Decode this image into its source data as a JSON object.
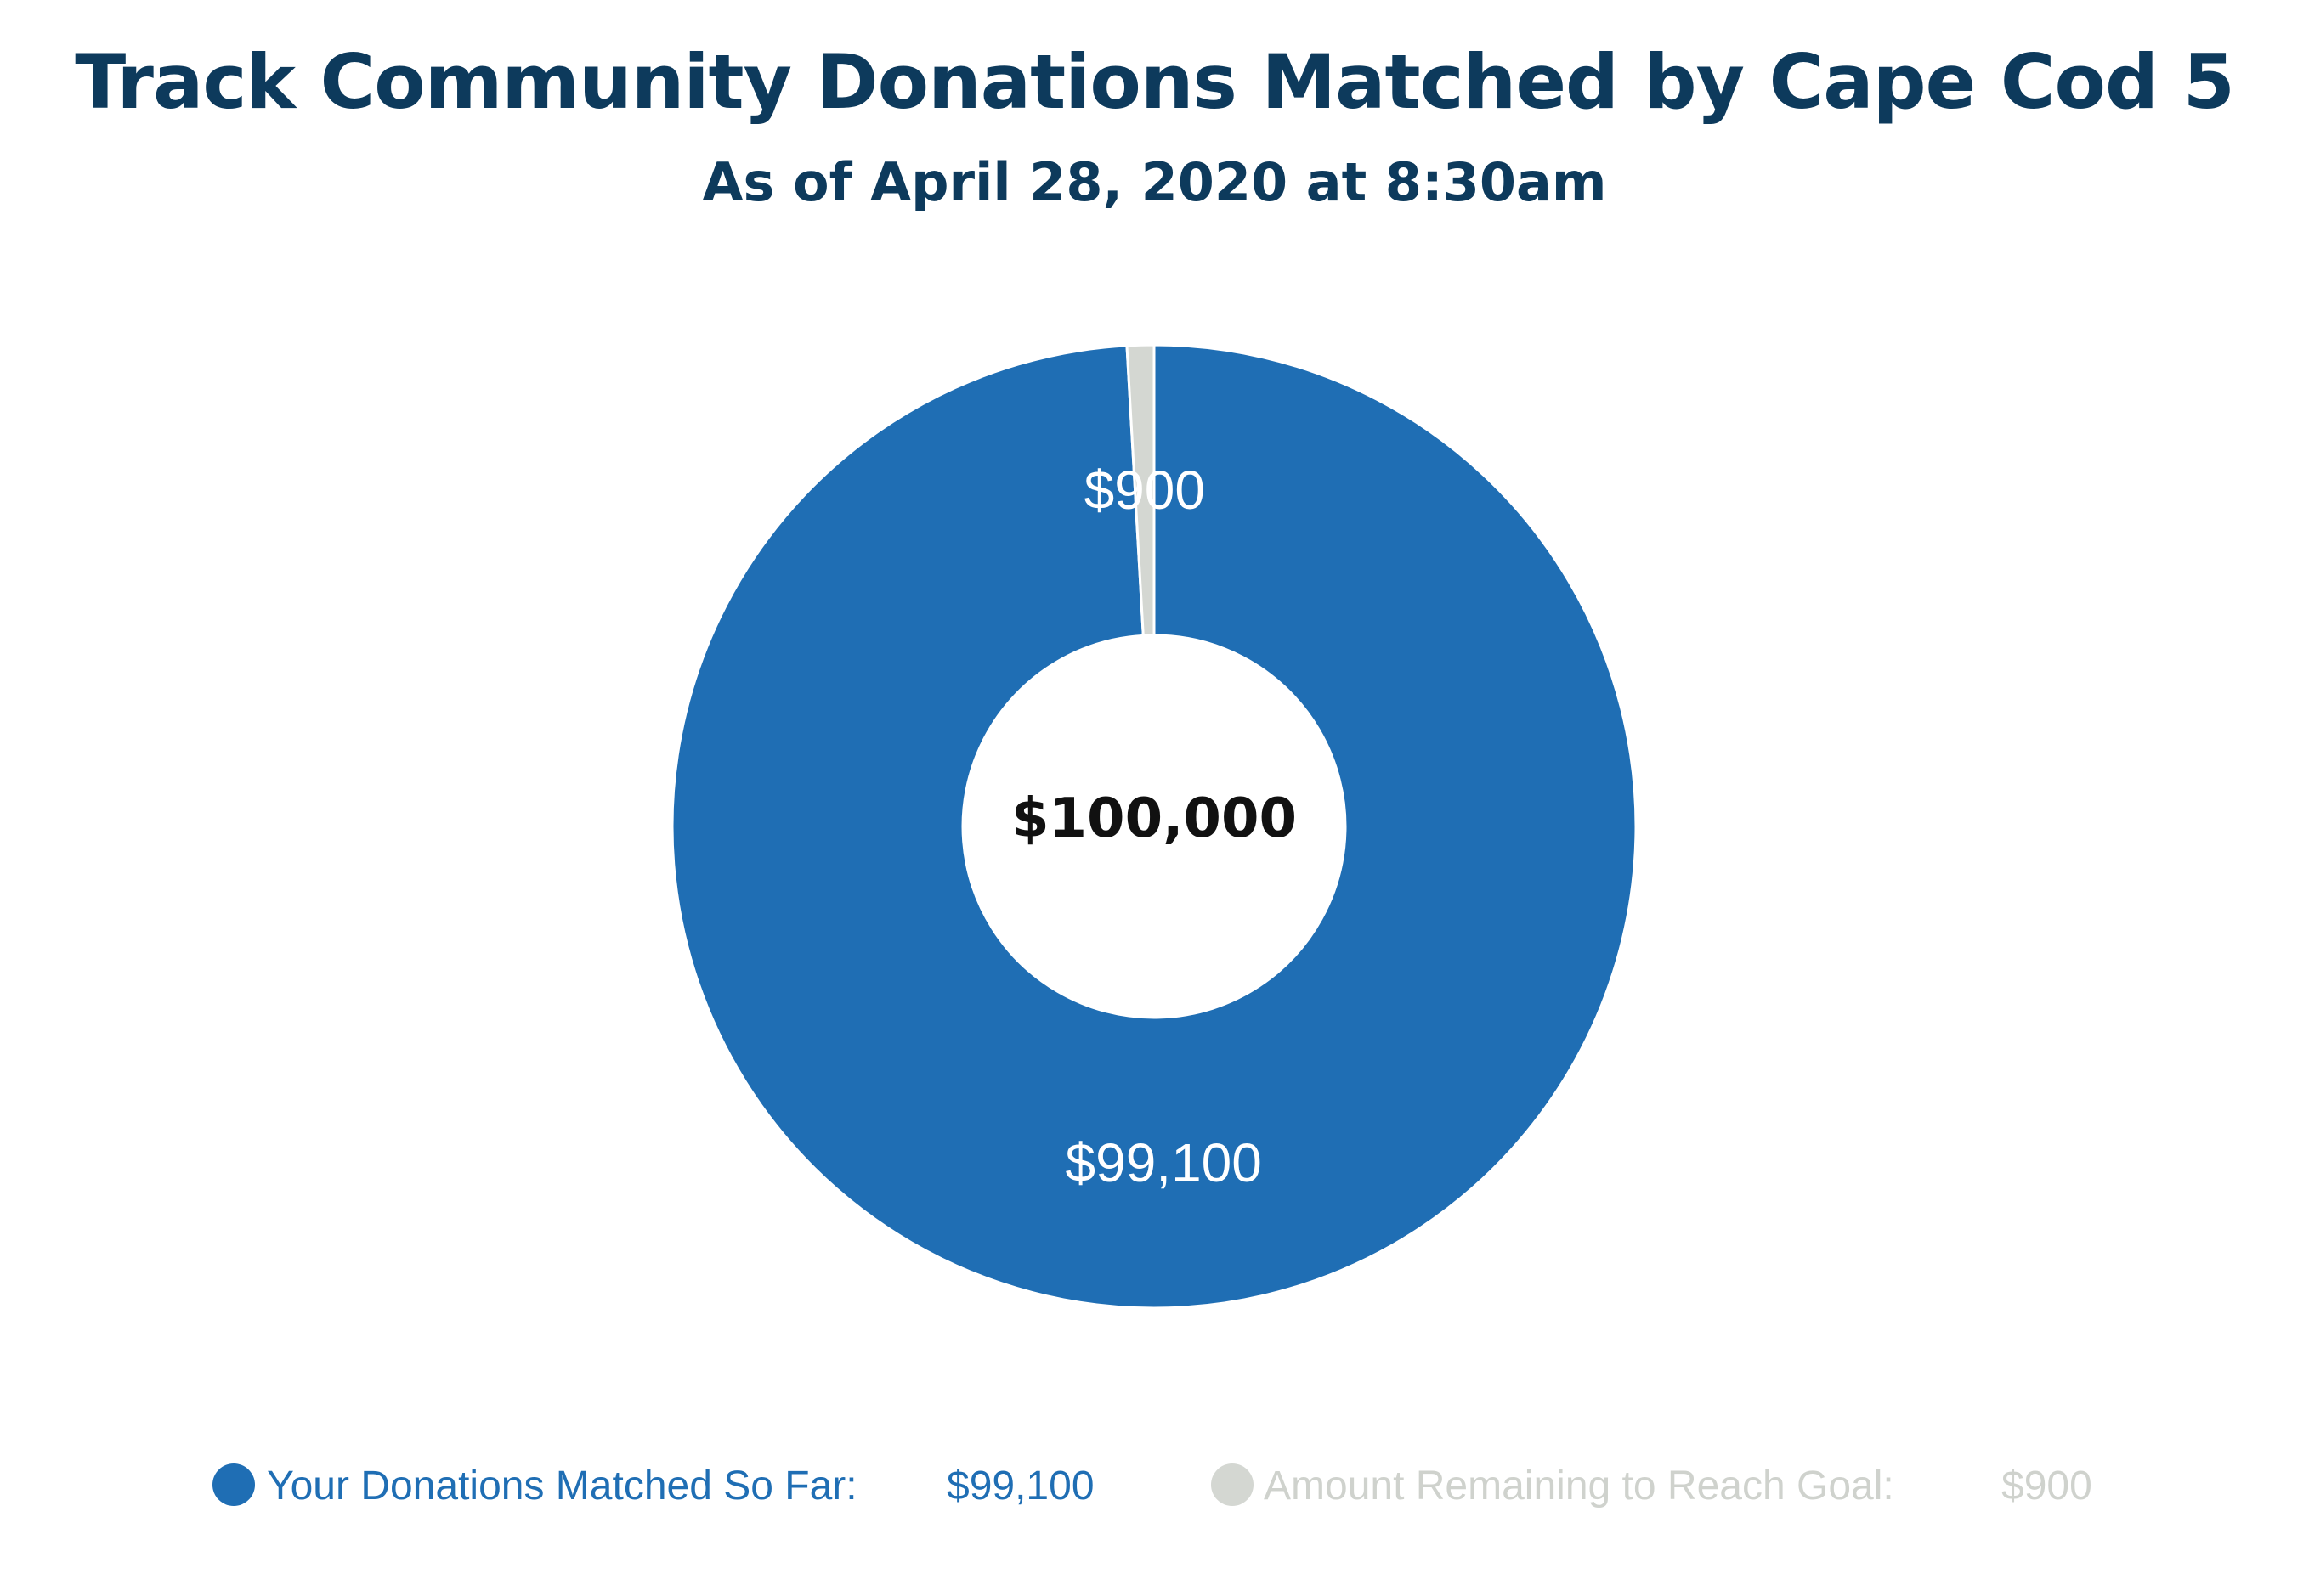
{
  "chart_data": {
    "type": "pie",
    "variant": "donut",
    "title": "Track Community Donations Matched by Cape Cod 5",
    "subtitle": "As of April 28, 2020 at 8:30am",
    "center_label": "$100,000",
    "total": 100000,
    "series": [
      {
        "name": "Your Donations Matched So Far:",
        "value": 99100,
        "value_label": "$99,100",
        "color": "#1f6eb4"
      },
      {
        "name": "Amount Remaining to Reach Goal:",
        "value": 900,
        "value_label": "$900",
        "color": "#d4d7d2"
      }
    ],
    "legend_position": "bottom",
    "legend_text_colors": [
      "#1f6eb4",
      "#cfd2cd"
    ]
  }
}
